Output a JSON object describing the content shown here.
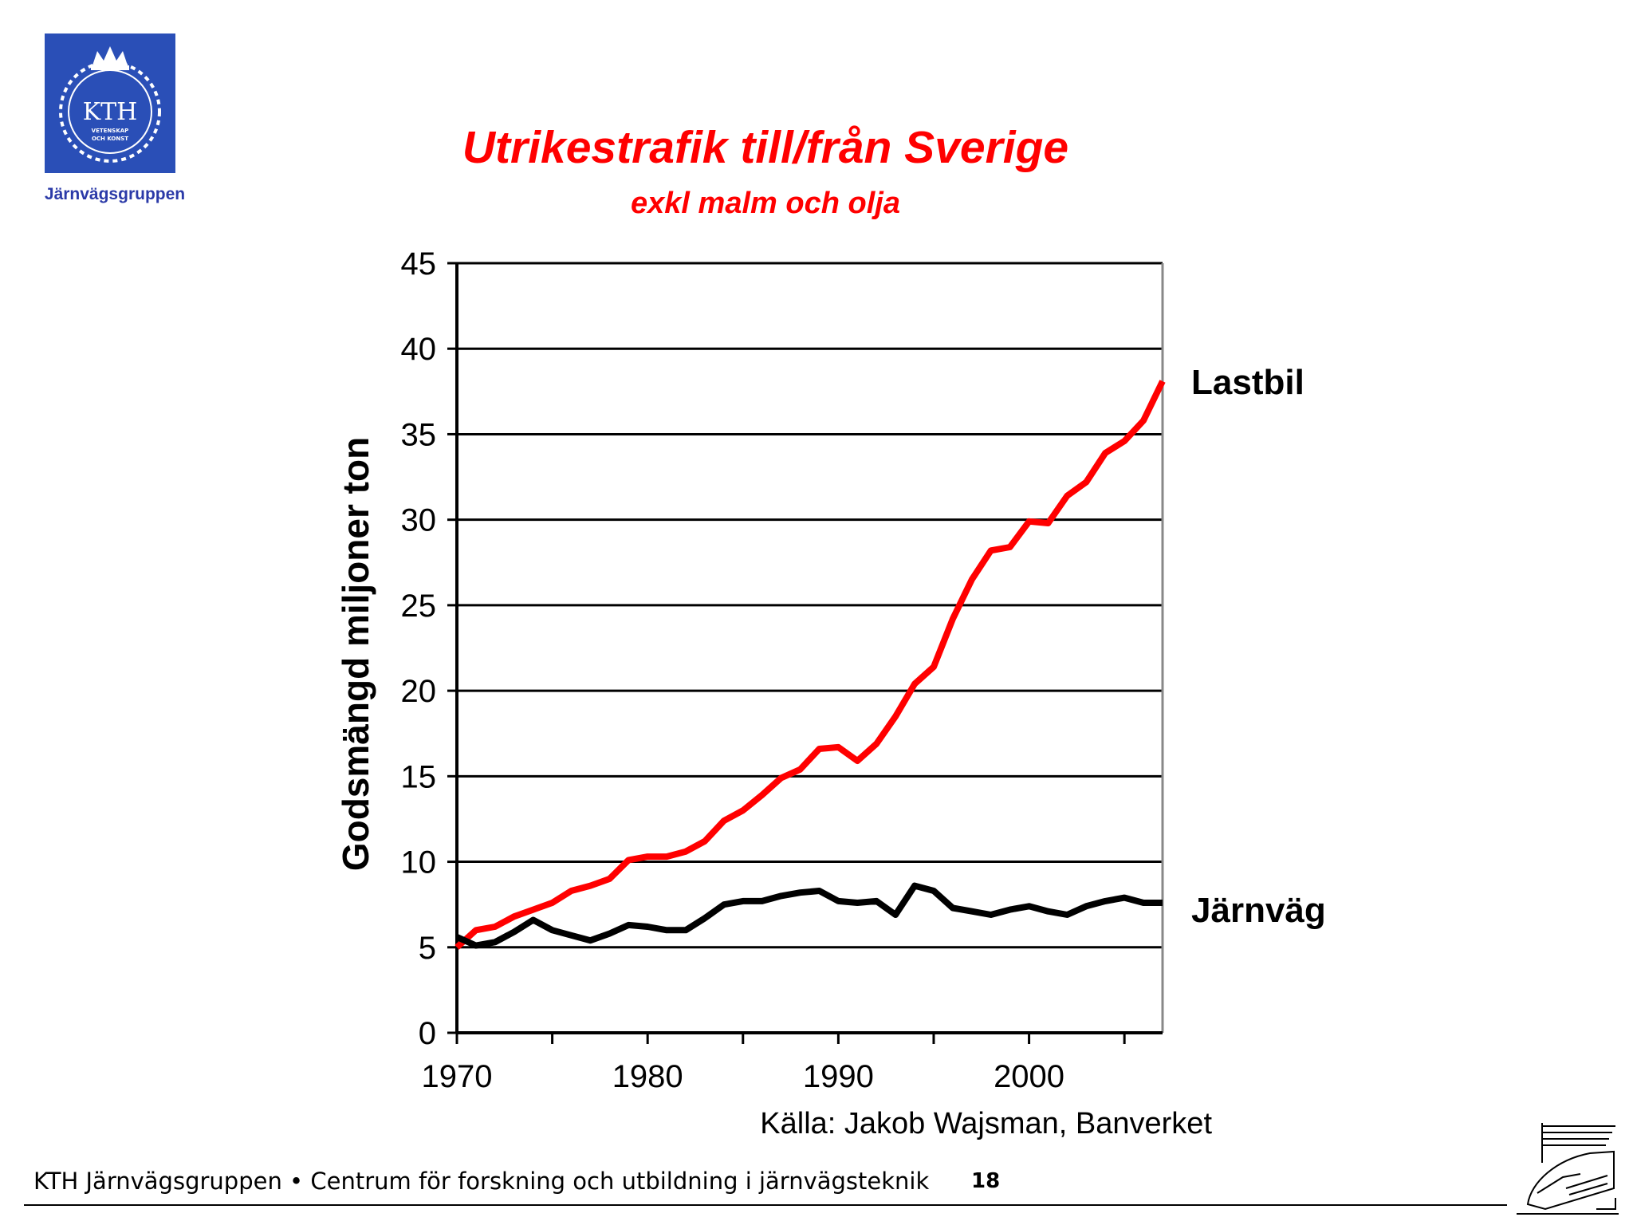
{
  "header": {
    "logo_text": "KTH",
    "logo_subtext": [
      "VETENSKAP",
      "OCH KONST"
    ],
    "logo_caption": "Järnvägsgruppen"
  },
  "footer": {
    "text": "KTH Järnvägsgruppen • Centrum för forskning och utbildning i järnvägsteknik",
    "page_number": "18",
    "icon": "train-icon"
  },
  "chart_data": {
    "type": "line",
    "title": "Utrikestrafik till/från Sverige",
    "subtitle": "exkl malm och olja",
    "ylabel": "Godsmängd miljoner ton",
    "xlabel": "",
    "ylim": [
      0,
      45
    ],
    "xlim": [
      1970,
      2007
    ],
    "yticks": [
      0,
      5,
      10,
      15,
      20,
      25,
      30,
      35,
      40,
      45
    ],
    "xticks": [
      1970,
      1980,
      1990,
      2000
    ],
    "grid": true,
    "source": "Källa: Jakob Wajsman, Banverket",
    "x": [
      1970,
      1971,
      1972,
      1973,
      1974,
      1975,
      1976,
      1977,
      1978,
      1979,
      1980,
      1981,
      1982,
      1983,
      1984,
      1985,
      1986,
      1987,
      1988,
      1989,
      1990,
      1991,
      1992,
      1993,
      1994,
      1995,
      1996,
      1997,
      1998,
      1999,
      2000,
      2001,
      2002,
      2003,
      2004,
      2005,
      2006,
      2007
    ],
    "series": [
      {
        "name": "Lastbil",
        "color": "#ff0000",
        "values": [
          5.0,
          6.0,
          6.2,
          6.8,
          7.2,
          7.6,
          8.3,
          8.6,
          9.0,
          10.1,
          10.3,
          10.3,
          10.6,
          11.2,
          12.4,
          13.0,
          13.9,
          14.9,
          15.4,
          16.6,
          16.7,
          15.9,
          16.9,
          18.5,
          20.4,
          21.4,
          24.2,
          26.5,
          28.2,
          28.4,
          29.9,
          29.8,
          31.4,
          32.2,
          33.9,
          34.6,
          35.8,
          38.1
        ]
      },
      {
        "name": "Järnväg",
        "color": "#000000",
        "values": [
          5.6,
          5.1,
          5.3,
          5.9,
          6.6,
          6.0,
          5.7,
          5.4,
          5.8,
          6.3,
          6.2,
          6.0,
          6.0,
          6.7,
          7.5,
          7.7,
          7.7,
          8.0,
          8.2,
          8.3,
          7.7,
          7.6,
          7.7,
          6.9,
          8.6,
          8.3,
          7.3,
          7.1,
          6.9,
          7.2,
          7.4,
          7.1,
          6.9,
          7.4,
          7.7,
          7.9,
          7.6,
          7.6
        ]
      }
    ]
  }
}
